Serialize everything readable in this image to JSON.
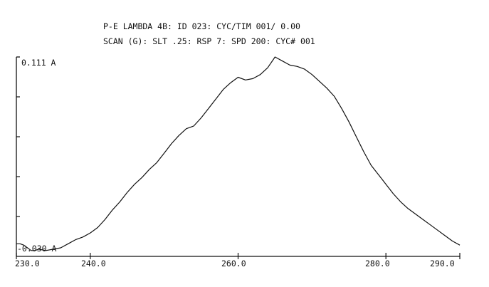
{
  "header": {
    "line1": "P-E LAMBDA 4B: ID 023: CYC/TIM 001/ 0.00",
    "line2": "SCAN (G): SLT .25: RSP 7: SPD 200: CYC# 001"
  },
  "chart_data": {
    "type": "line",
    "title": "",
    "xlabel": "",
    "ylabel": "",
    "x_tick_labels": [
      "230.0",
      "240.0",
      "260.0",
      "280.0",
      "290.0"
    ],
    "x_ticks": [
      230,
      240,
      260,
      280,
      290
    ],
    "xlim": [
      230,
      290
    ],
    "y_top_label": "0.111 A",
    "y_bottom_label": "-0.030 A",
    "ylim": [
      -0.03,
      0.111
    ],
    "y_minor_ticks": 4,
    "grid": false,
    "series": [
      {
        "x": [
          230.0,
          230.5,
          231.0,
          231.5,
          232.0,
          232.5,
          233.0,
          234.0,
          235.0,
          236.0,
          237.0,
          238.0,
          239.0,
          240.0,
          241.0,
          242.0,
          243.0,
          244.0,
          245.0,
          246.0,
          247.0,
          248.0,
          249.0,
          250.0,
          251.0,
          252.0,
          253.0,
          254.0,
          255.0,
          256.0,
          257.0,
          258.0,
          259.0,
          260.0,
          261.0,
          262.0,
          263.0,
          264.0,
          265.0,
          266.0,
          267.0,
          268.0,
          269.0,
          270.0,
          271.0,
          272.0,
          273.0,
          274.0,
          275.0,
          276.0,
          277.0,
          278.0,
          279.0,
          280.0,
          281.0,
          282.0,
          283.0,
          284.0,
          285.0,
          286.0,
          287.0,
          288.0,
          289.0,
          290.0
        ],
        "values": [
          -0.027,
          -0.027,
          -0.028,
          -0.03,
          -0.032,
          -0.032,
          -0.031,
          -0.032,
          -0.031,
          -0.03,
          -0.027,
          -0.024,
          -0.022,
          -0.019,
          -0.015,
          -0.009,
          -0.002,
          0.004,
          0.011,
          0.017,
          0.022,
          0.028,
          0.033,
          0.04,
          0.047,
          0.053,
          0.058,
          0.06,
          0.066,
          0.073,
          0.08,
          0.087,
          0.092,
          0.096,
          0.094,
          0.095,
          0.098,
          0.103,
          0.111,
          0.108,
          0.105,
          0.104,
          0.102,
          0.098,
          0.093,
          0.088,
          0.082,
          0.073,
          0.063,
          0.052,
          0.041,
          0.031,
          0.024,
          0.017,
          0.01,
          0.004,
          -0.001,
          -0.005,
          -0.009,
          -0.013,
          -0.017,
          -0.021,
          -0.025,
          -0.028
        ]
      }
    ]
  }
}
